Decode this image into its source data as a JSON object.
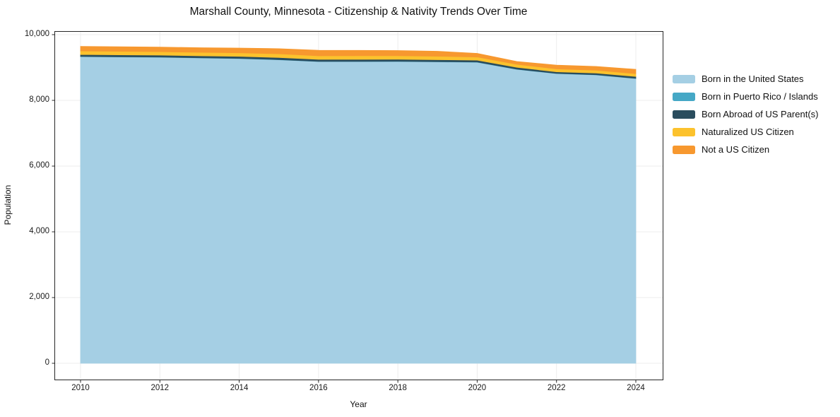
{
  "chart_data": {
    "type": "area",
    "stacked": true,
    "title": "Marshall County, Minnesota - Citizenship & Nativity Trends Over Time",
    "xlabel": "Year",
    "ylabel": "Population",
    "x": [
      2010,
      2011,
      2012,
      2013,
      2014,
      2015,
      2016,
      2017,
      2018,
      2019,
      2020,
      2021,
      2022,
      2023,
      2024
    ],
    "series": [
      {
        "name": "Born in the United States",
        "color": "#a5cfe4",
        "values": [
          9330,
          9321,
          9312,
          9290,
          9272,
          9235,
          9181,
          9181,
          9182,
          9172,
          9160,
          8945,
          8815,
          8775,
          8665
        ]
      },
      {
        "name": "Born in Puerto Rico / Islands",
        "color": "#45a8c6",
        "values": [
          6,
          6,
          6,
          6,
          6,
          6,
          6,
          6,
          6,
          6,
          6,
          5,
          5,
          5,
          5
        ]
      },
      {
        "name": "Born Abroad of US Parent(s)",
        "color": "#2a4d5e",
        "values": [
          58,
          58,
          58,
          60,
          60,
          64,
          60,
          62,
          62,
          60,
          58,
          55,
          50,
          50,
          58
        ]
      },
      {
        "name": "Naturalized US Citizen",
        "color": "#fcc22d",
        "values": [
          108,
          107,
          106,
          106,
          108,
          112,
          108,
          108,
          108,
          105,
          95,
          92,
          88,
          86,
          86
        ]
      },
      {
        "name": "Not a US Citizen",
        "color": "#f7982f",
        "values": [
          140,
          139,
          138,
          140,
          145,
          155,
          170,
          165,
          158,
          152,
          110,
          85,
          115,
          116,
          130
        ]
      }
    ],
    "xlim": [
      2010,
      2024
    ],
    "ylim": [
      0,
      10000
    ],
    "xticks": {
      "values": [
        2010,
        2012,
        2014,
        2016,
        2018,
        2020,
        2022,
        2024
      ],
      "labels": [
        "2010",
        "2012",
        "2014",
        "2016",
        "2018",
        "2020",
        "2022",
        "2024"
      ]
    },
    "yticks": {
      "values": [
        0,
        2000,
        4000,
        6000,
        8000,
        10000
      ],
      "labels": [
        "0",
        "2,000",
        "4,000",
        "6,000",
        "8,000",
        "10,000"
      ]
    },
    "grid": true,
    "grid_color": "#ececec",
    "frame_color": "#262626",
    "legend_position": "right-outside"
  }
}
